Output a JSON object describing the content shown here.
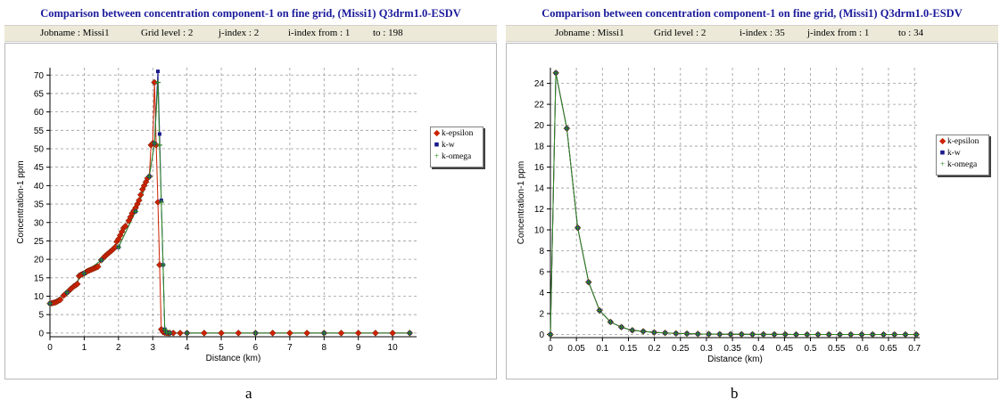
{
  "panels": [
    {
      "title": "Comparison between concentration component-1 on fine grid, (Missi1) Q3drm1.0-ESDV",
      "info": {
        "jobname": "Jobname : Missi1",
        "grid_level": "Grid level :  2",
        "index_a": "j-index :  2",
        "index_b": "i-index from : 1",
        "to": "to :  198"
      },
      "legend": [
        "k-epsilon",
        "k-w",
        "k-omega"
      ],
      "caption": "a"
    },
    {
      "title": "Comparison between concentration component-1 on fine grid, (Missi1) Q3drm1.0-ESDV",
      "info": {
        "jobname": "Jobname : Missi1",
        "grid_level": "Grid level :  2",
        "index_a": "i-index :  35",
        "index_b": "j-index from : 1",
        "to": "to :  34"
      },
      "legend": [
        "k-epsilon",
        "k-w",
        "k-omega"
      ],
      "caption": "b"
    }
  ],
  "colors": {
    "k_epsilon": "#cc2200",
    "k_w": "#1a1a8c",
    "k_omega": "#2e8b22",
    "title": "#1a1a9c"
  },
  "chart_data": [
    {
      "type": "line",
      "title": "",
      "xlabel": "Distance (km)",
      "ylabel": "Concentration-1 ppm",
      "xlim": [
        0,
        10.7
      ],
      "ylim": [
        -1,
        72
      ],
      "xticks": [
        "0",
        "1",
        "2",
        "3",
        "4",
        "5",
        "6",
        "7",
        "8",
        "9",
        "10"
      ],
      "yticks": [
        "0",
        "5",
        "10",
        "15",
        "20",
        "25",
        "30",
        "35",
        "40",
        "45",
        "50",
        "55",
        "60",
        "65",
        "70"
      ],
      "grid": true,
      "legend_position": "right",
      "series": [
        {
          "name": "k-epsilon",
          "x": [
            0,
            0.05,
            0.1,
            0.15,
            0.2,
            0.25,
            0.3,
            0.4,
            0.45,
            0.5,
            0.55,
            0.6,
            0.65,
            0.7,
            0.75,
            0.8,
            0.85,
            0.9,
            0.95,
            1.0,
            1.05,
            1.1,
            1.15,
            1.2,
            1.25,
            1.3,
            1.35,
            1.4,
            1.5,
            1.55,
            1.6,
            1.65,
            1.7,
            1.75,
            1.8,
            1.85,
            1.9,
            1.95,
            2.0,
            2.05,
            2.1,
            2.15,
            2.2,
            2.3,
            2.35,
            2.4,
            2.45,
            2.5,
            2.55,
            2.6,
            2.65,
            2.7,
            2.75,
            2.8,
            2.85,
            2.9,
            2.95,
            3.0,
            3.05,
            3.1,
            3.15,
            3.2,
            3.25,
            3.3,
            3.35,
            3.4,
            3.45,
            3.5,
            3.6,
            3.8,
            4.0,
            4.5,
            5.0,
            5.5,
            6.0,
            6.5,
            7.0,
            7.5,
            8.0,
            8.5,
            9.0,
            9.5,
            10.0,
            10.5
          ],
          "y": [
            8,
            8.1,
            8.2,
            8.3,
            8.5,
            8.8,
            9,
            10.2,
            10.6,
            11,
            11.4,
            11.9,
            12.3,
            12.7,
            13,
            13.3,
            15.5,
            15.8,
            16,
            16.2,
            16.5,
            16.8,
            17,
            17.2,
            17.4,
            17.6,
            17.8,
            18,
            19.8,
            20.3,
            20.8,
            21.2,
            21.6,
            22,
            22.4,
            22.8,
            23.3,
            24.8,
            25.5,
            26.5,
            27.5,
            28.5,
            29,
            30.5,
            31.5,
            32.5,
            33.2,
            34,
            35,
            36,
            37.5,
            39,
            40,
            41,
            42,
            42.5,
            51,
            51.5,
            68,
            51,
            35.5,
            18.5,
            1,
            0.3,
            0.1,
            0.05,
            0,
            0,
            0,
            0,
            0,
            0,
            0,
            0,
            0,
            0,
            0,
            0,
            0,
            0,
            0,
            0,
            0,
            0
          ]
        },
        {
          "name": "k-w",
          "x": [
            0,
            0.5,
            1.0,
            1.5,
            2.0,
            2.5,
            2.9,
            3.05,
            3.15,
            3.2,
            3.25,
            3.3,
            3.35,
            3.4,
            3.5,
            4.0,
            6.0,
            8.0,
            10.5
          ],
          "y": [
            8,
            11,
            16.2,
            19.8,
            23.3,
            33,
            42.5,
            51.5,
            71,
            54,
            36,
            18.5,
            1,
            0.2,
            0,
            0,
            0,
            0,
            0
          ]
        },
        {
          "name": "k-omega",
          "x": [
            0,
            0.5,
            1.0,
            1.5,
            2.0,
            2.5,
            2.9,
            3.05,
            3.15,
            3.2,
            3.25,
            3.3,
            3.35,
            3.4,
            3.5,
            4.0,
            6.0,
            8.0,
            10.5
          ],
          "y": [
            8,
            11,
            16.2,
            19.8,
            23.3,
            33,
            42.5,
            51.5,
            68,
            51,
            35.5,
            18.5,
            1,
            0.2,
            0,
            0,
            0,
            0,
            0
          ]
        }
      ]
    },
    {
      "type": "line",
      "title": "",
      "xlabel": "Distance (km)",
      "ylabel": "Concentration-1 ppm",
      "xlim": [
        0,
        0.71
      ],
      "ylim": [
        -0.3,
        25.5
      ],
      "xticks": [
        "0",
        "0.05",
        "0.1",
        "0.15",
        "0.2",
        "0.25",
        "0.3",
        "0.35",
        "0.4",
        "0.45",
        "0.5",
        "0.55",
        "0.6",
        "0.65",
        "0.7"
      ],
      "yticks": [
        "0",
        "2",
        "4",
        "6",
        "8",
        "10",
        "12",
        "14",
        "16",
        "18",
        "20",
        "22",
        "24"
      ],
      "grid": true,
      "legend_position": "right",
      "series": [
        {
          "name": "k-epsilon",
          "x": [
            0,
            0.0105,
            0.0315,
            0.0525,
            0.0735,
            0.0945,
            0.1155,
            0.1365,
            0.1575,
            0.1785,
            0.1995,
            0.2205,
            0.2415,
            0.2625,
            0.2835,
            0.3045,
            0.3255,
            0.3465,
            0.3675,
            0.3885,
            0.4095,
            0.4305,
            0.4515,
            0.4725,
            0.4935,
            0.5145,
            0.5355,
            0.5565,
            0.5775,
            0.5985,
            0.6195,
            0.6405,
            0.6615,
            0.6825,
            0.7035
          ],
          "y": [
            0,
            25,
            19.7,
            10.2,
            5,
            2.3,
            1.2,
            0.7,
            0.4,
            0.3,
            0.2,
            0.15,
            0.1,
            0.08,
            0.05,
            0.04,
            0.03,
            0.02,
            0.02,
            0.01,
            0.01,
            0.01,
            0.01,
            0,
            0,
            0,
            0,
            0,
            0,
            0,
            0,
            0,
            0,
            0,
            0
          ]
        },
        {
          "name": "k-w",
          "x": [
            0,
            0.0105,
            0.0315,
            0.0525,
            0.0735,
            0.0945,
            0.1155,
            0.1365,
            0.1575,
            0.1785,
            0.1995,
            0.2205,
            0.2415,
            0.2625,
            0.2835,
            0.3045,
            0.3255,
            0.3465,
            0.3675,
            0.3885,
            0.4095,
            0.4305,
            0.4515,
            0.4725,
            0.4935,
            0.5145,
            0.5355,
            0.5565,
            0.5775,
            0.5985,
            0.6195,
            0.6405,
            0.6615,
            0.6825,
            0.7035
          ],
          "y": [
            0,
            25,
            19.7,
            10.2,
            5,
            2.3,
            1.2,
            0.7,
            0.4,
            0.3,
            0.2,
            0.15,
            0.1,
            0.08,
            0.05,
            0.04,
            0.03,
            0.02,
            0.02,
            0.01,
            0.01,
            0.01,
            0.01,
            0,
            0,
            0,
            0,
            0,
            0,
            0,
            0,
            0,
            0,
            0,
            0
          ]
        },
        {
          "name": "k-omega",
          "x": [
            0,
            0.0105,
            0.0315,
            0.0525,
            0.0735,
            0.0945,
            0.1155,
            0.1365,
            0.1575,
            0.1785,
            0.1995,
            0.2205,
            0.2415,
            0.2625,
            0.2835,
            0.3045,
            0.3255,
            0.3465,
            0.3675,
            0.3885,
            0.4095,
            0.4305,
            0.4515,
            0.4725,
            0.4935,
            0.5145,
            0.5355,
            0.5565,
            0.5775,
            0.5985,
            0.6195,
            0.6405,
            0.6615,
            0.6825,
            0.7035
          ],
          "y": [
            0,
            25,
            19.7,
            10.2,
            5,
            2.3,
            1.2,
            0.7,
            0.4,
            0.3,
            0.2,
            0.15,
            0.1,
            0.08,
            0.05,
            0.04,
            0.03,
            0.02,
            0.02,
            0.01,
            0.01,
            0.01,
            0.01,
            0,
            0,
            0,
            0,
            0,
            0,
            0,
            0,
            0,
            0,
            0,
            0
          ]
        }
      ]
    }
  ]
}
